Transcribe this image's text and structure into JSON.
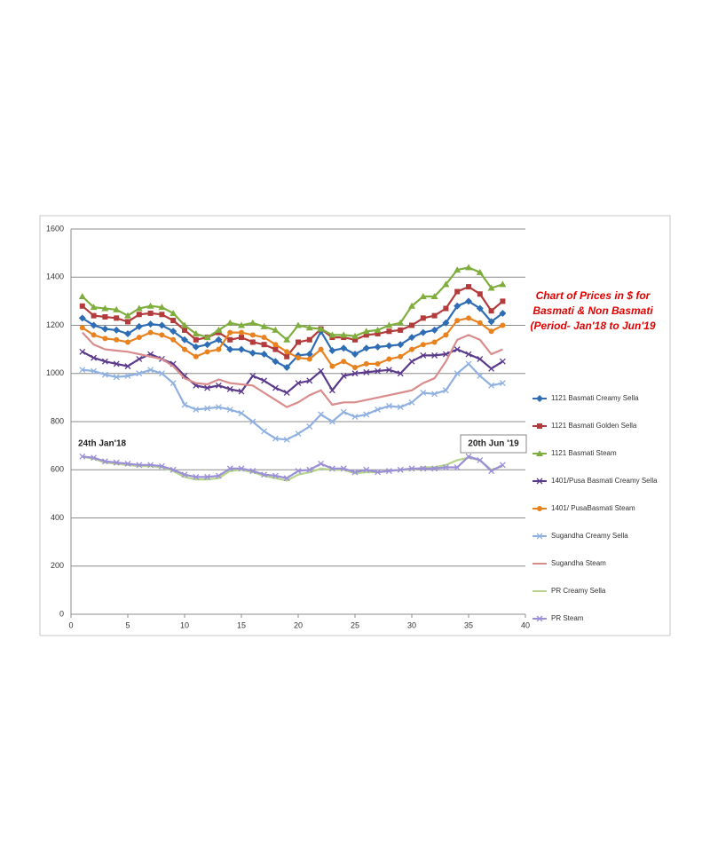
{
  "chart_data": {
    "type": "line",
    "title": [
      "Chart of Prices in $ for",
      "Basmati & Non Basmati",
      "(Period- Jan'18 to Jun'19"
    ],
    "annotations": [
      "24th Jan'18",
      "20th Jun '19"
    ],
    "x": [
      1,
      2,
      3,
      4,
      5,
      6,
      7,
      8,
      9,
      10,
      11,
      12,
      13,
      14,
      15,
      16,
      17,
      18,
      19,
      20,
      21,
      22,
      23,
      24,
      25,
      26,
      27,
      28,
      29,
      30,
      31,
      32,
      33,
      34,
      35,
      36,
      37,
      38
    ],
    "xlim": [
      0,
      40
    ],
    "xticks": [
      0,
      5,
      10,
      15,
      20,
      25,
      30,
      35,
      40
    ],
    "ylim": [
      0,
      1600
    ],
    "yticks": [
      0,
      200,
      400,
      600,
      800,
      1000,
      1200,
      1400,
      1600
    ],
    "grid": true,
    "legend": "right",
    "series": [
      {
        "name": "1121 Basmati Creamy Sella",
        "color": "#2e6db4",
        "marker": "diamond",
        "values": [
          1230,
          1200,
          1185,
          1180,
          1165,
          1195,
          1205,
          1200,
          1175,
          1140,
          1110,
          1120,
          1140,
          1100,
          1100,
          1085,
          1080,
          1050,
          1025,
          1075,
          1080,
          1175,
          1095,
          1105,
          1080,
          1105,
          1110,
          1115,
          1120,
          1150,
          1170,
          1180,
          1210,
          1280,
          1300,
          1270,
          1215,
          1250
        ]
      },
      {
        "name": "1121 Basmati Golden Sella",
        "color": "#b33b3b",
        "marker": "square",
        "values": [
          1280,
          1240,
          1235,
          1230,
          1215,
          1245,
          1250,
          1245,
          1220,
          1180,
          1140,
          1150,
          1170,
          1140,
          1150,
          1130,
          1120,
          1100,
          1070,
          1130,
          1140,
          1185,
          1150,
          1150,
          1140,
          1160,
          1165,
          1175,
          1180,
          1200,
          1230,
          1240,
          1270,
          1340,
          1360,
          1330,
          1260,
          1300
        ]
      },
      {
        "name": "1121 Basmati Steam",
        "color": "#7fae3e",
        "marker": "triangle",
        "values": [
          1320,
          1275,
          1270,
          1265,
          1240,
          1270,
          1280,
          1275,
          1250,
          1200,
          1165,
          1150,
          1180,
          1210,
          1200,
          1210,
          1195,
          1180,
          1140,
          1200,
          1190,
          1185,
          1160,
          1160,
          1155,
          1175,
          1180,
          1200,
          1210,
          1280,
          1320,
          1320,
          1370,
          1430,
          1440,
          1420,
          1355,
          1370
        ]
      },
      {
        "name": "1401/Pusa Basmati Creamy Sella",
        "color": "#5b3a8c",
        "marker": "cross",
        "values": [
          1090,
          1065,
          1050,
          1040,
          1030,
          1060,
          1080,
          1060,
          1040,
          990,
          950,
          940,
          950,
          935,
          925,
          990,
          970,
          940,
          920,
          960,
          970,
          1010,
          930,
          990,
          1000,
          1005,
          1010,
          1015,
          1000,
          1050,
          1075,
          1075,
          1080,
          1100,
          1080,
          1060,
          1020,
          1050
        ]
      },
      {
        "name": "1401/ PusaBasmati Steam",
        "color": "#e8821e",
        "marker": "circle",
        "values": [
          1190,
          1160,
          1145,
          1140,
          1130,
          1150,
          1170,
          1160,
          1140,
          1100,
          1070,
          1090,
          1100,
          1170,
          1170,
          1160,
          1150,
          1120,
          1090,
          1065,
          1060,
          1100,
          1030,
          1050,
          1025,
          1040,
          1040,
          1060,
          1070,
          1100,
          1120,
          1130,
          1160,
          1220,
          1230,
          1210,
          1175,
          1200
        ]
      },
      {
        "name": "Sugandha Creamy Sella",
        "color": "#8fb0e0",
        "marker": "cross",
        "values": [
          1015,
          1010,
          995,
          985,
          990,
          1000,
          1015,
          1000,
          960,
          870,
          850,
          855,
          860,
          850,
          835,
          800,
          760,
          730,
          725,
          750,
          780,
          830,
          800,
          840,
          820,
          830,
          850,
          865,
          860,
          880,
          920,
          915,
          930,
          1000,
          1040,
          990,
          950,
          960
        ]
      },
      {
        "name": "Sugandha Steam",
        "color": "#d98c8c",
        "marker": "none",
        "values": [
          1170,
          1120,
          1100,
          1095,
          1090,
          1080,
          1070,
          1060,
          1030,
          980,
          960,
          955,
          975,
          960,
          955,
          950,
          920,
          890,
          860,
          880,
          910,
          930,
          870,
          880,
          880,
          890,
          900,
          910,
          920,
          930,
          960,
          980,
          1050,
          1140,
          1160,
          1140,
          1080,
          1100
        ]
      },
      {
        "name": "PR Creamy Sella",
        "color": "#b5d58a",
        "marker": "none",
        "values": [
          655,
          645,
          630,
          625,
          620,
          615,
          615,
          610,
          595,
          570,
          560,
          560,
          565,
          595,
          600,
          590,
          575,
          565,
          555,
          580,
          590,
          605,
          600,
          600,
          585,
          590,
          590,
          595,
          600,
          600,
          610,
          610,
          620,
          640,
          650,
          640,
          600,
          615
        ]
      },
      {
        "name": "PR Steam",
        "color": "#9b8fd6",
        "marker": "cross",
        "values": [
          655,
          650,
          635,
          630,
          625,
          620,
          620,
          615,
          600,
          580,
          570,
          570,
          575,
          605,
          605,
          595,
          580,
          575,
          565,
          595,
          600,
          625,
          605,
          605,
          590,
          600,
          590,
          595,
          600,
          605,
          605,
          605,
          610,
          610,
          655,
          640,
          595,
          620
        ]
      }
    ]
  }
}
